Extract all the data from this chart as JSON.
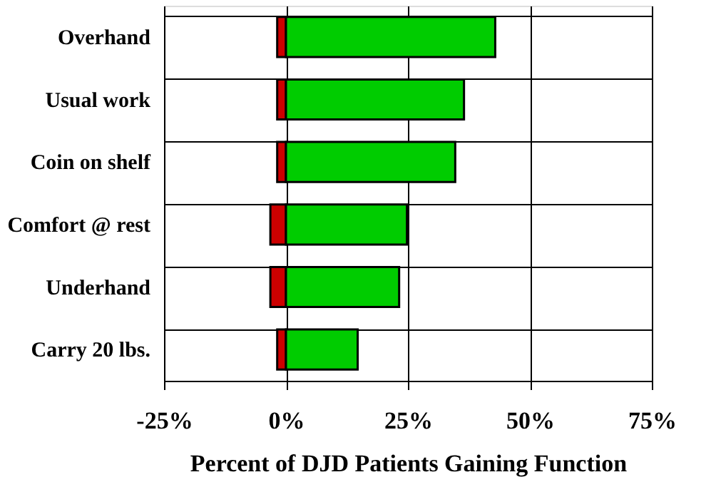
{
  "chart_data": {
    "type": "bar",
    "orientation": "horizontal",
    "stacked": true,
    "xlabel": "Percent of DJD Patients Gaining Function",
    "categories": [
      "Overhand",
      "Usual work",
      "Coin on shelf",
      "Comfort @ rest",
      "Underhand",
      "Carry 20 lbs."
    ],
    "series": [
      {
        "color": "#cc0000",
        "values": [
          -1.8,
          -1.8,
          -1.8,
          -3.2,
          -3.2,
          -1.8
        ]
      },
      {
        "color": "#00cc00",
        "values": [
          42.9,
          36.5,
          34.7,
          24.8,
          23.2,
          14.7
        ]
      }
    ],
    "xlim": [
      -25,
      75
    ],
    "xticks": [
      {
        "value": -25,
        "label": "-25%"
      },
      {
        "value": 0,
        "label": "0%"
      },
      {
        "value": 25,
        "label": "25%"
      },
      {
        "value": 50,
        "label": "50%"
      },
      {
        "value": 75,
        "label": "75%"
      }
    ],
    "grid": true
  }
}
